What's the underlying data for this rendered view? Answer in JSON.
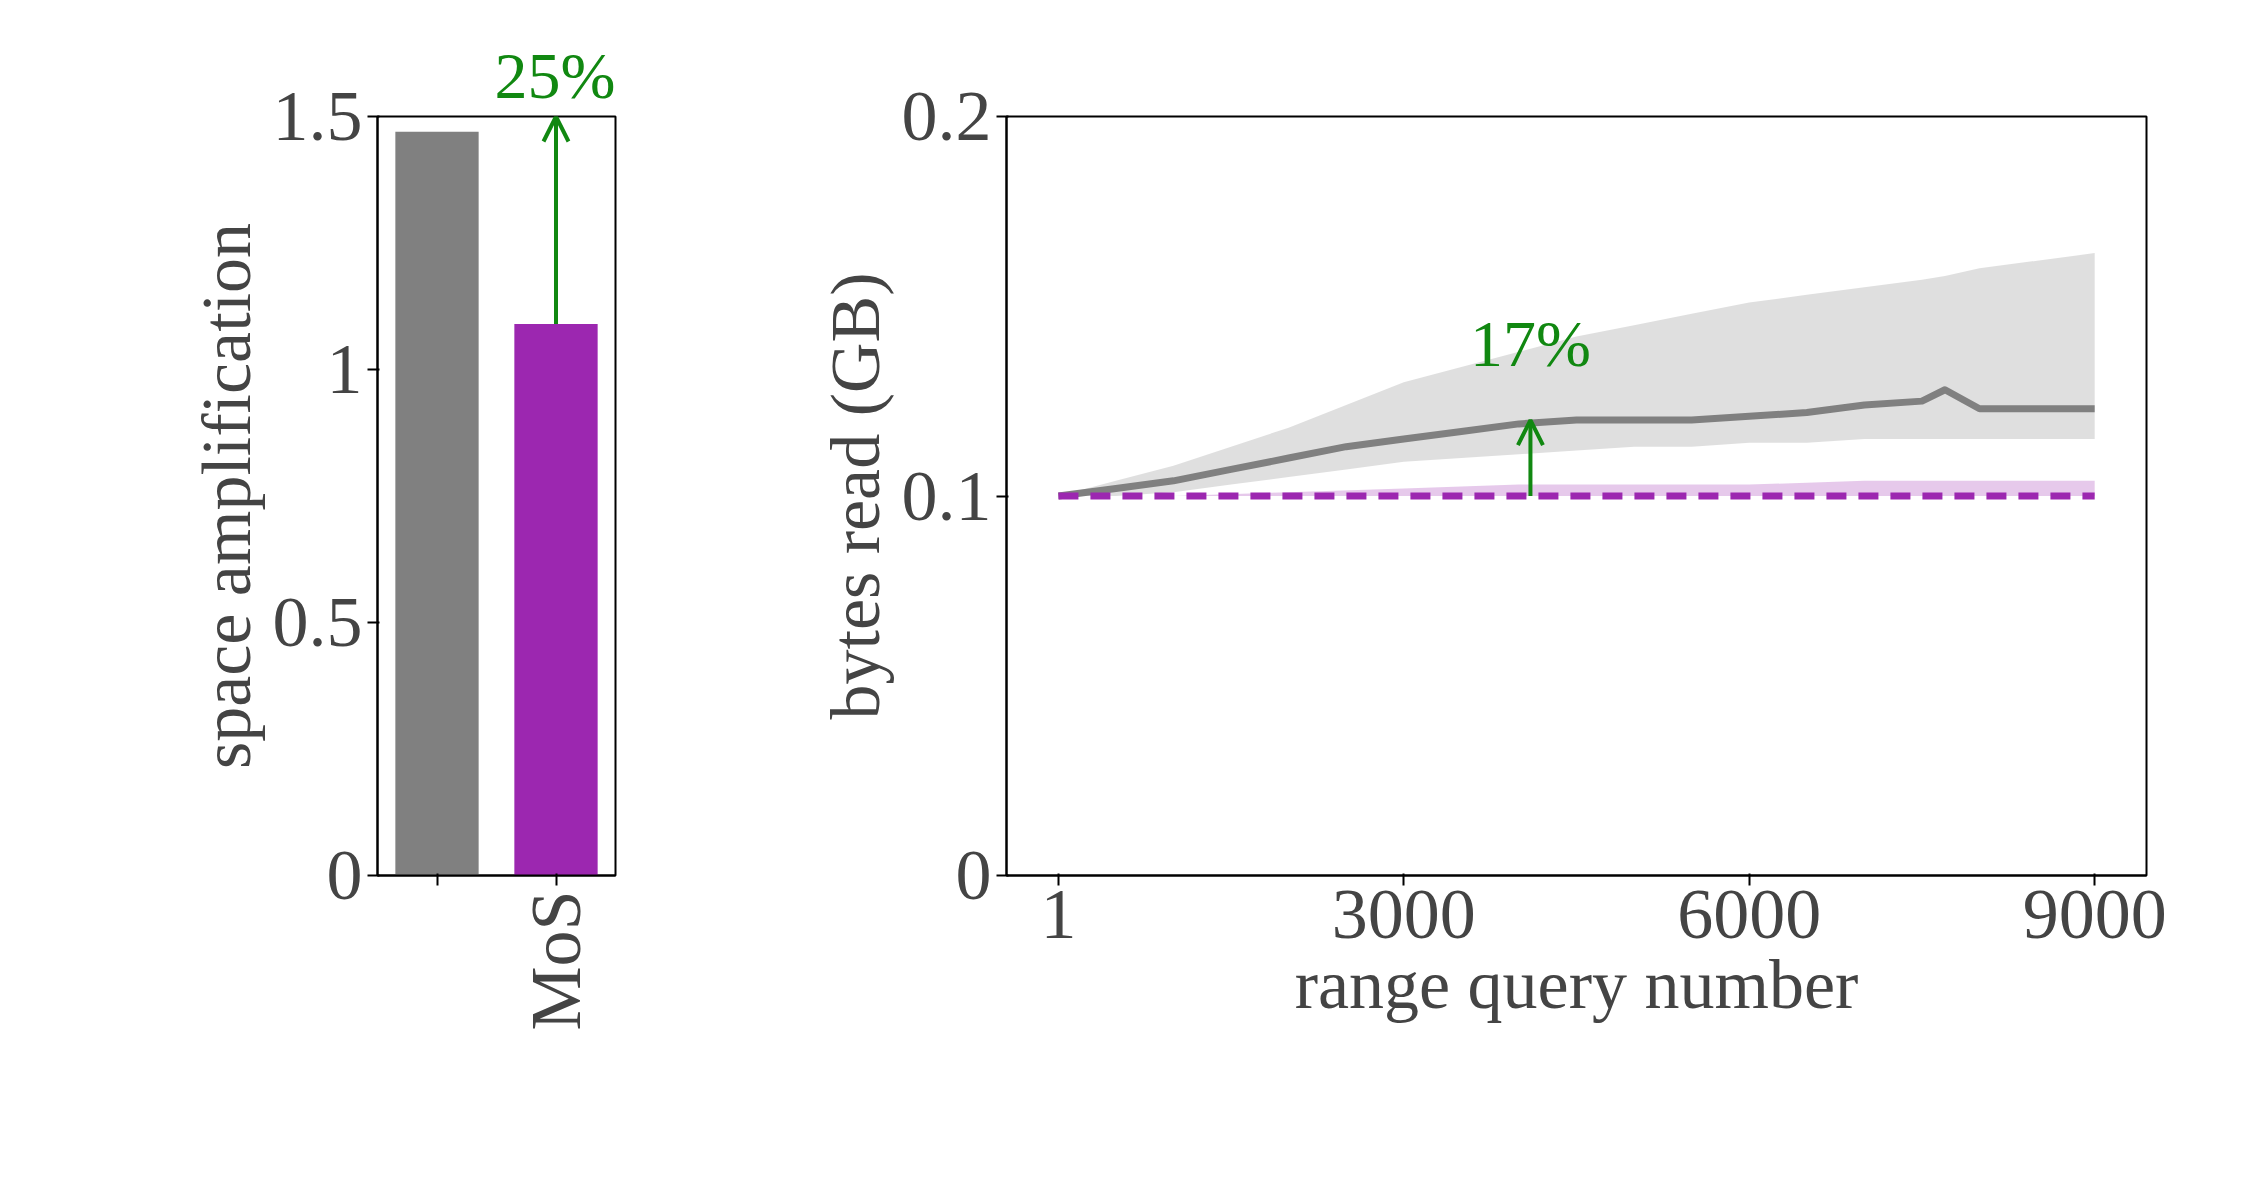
{
  "chart_data": [
    {
      "type": "bar",
      "ylabel": "space amplification",
      "categories": [
        null,
        "MoS"
      ],
      "values": [
        1.47,
        1.09
      ],
      "colors": [
        "#808080",
        "#9c27b0"
      ],
      "ylim": [
        0,
        1.5
      ],
      "yticks": [
        0,
        0.5,
        1,
        1.5
      ],
      "grid": false,
      "annotations": [
        "25%"
      ]
    },
    {
      "type": "line",
      "xlabel": "range query number",
      "ylabel": "bytes read (GB)",
      "xlim": [
        -450,
        9450
      ],
      "xticks": [
        1,
        3000,
        6000,
        9000
      ],
      "ylim": [
        0,
        0.2
      ],
      "yticks": [
        0,
        0.1,
        0.2
      ],
      "grid": false,
      "series": [
        {
          "color": "#808080",
          "line_style": "solid",
          "x": [
            1,
            500,
            1000,
            1500,
            2000,
            2500,
            3000,
            3500,
            4000,
            4500,
            5000,
            5500,
            6000,
            6500,
            7000,
            7500,
            7700,
            8000,
            8500,
            9000
          ],
          "values": [
            0.1,
            0.102,
            0.104,
            0.107,
            0.11,
            0.113,
            0.115,
            0.117,
            0.119,
            0.12,
            0.12,
            0.12,
            0.121,
            0.122,
            0.124,
            0.125,
            0.128,
            0.123,
            0.123,
            0.123
          ],
          "lower": [
            0.1,
            0.1,
            0.101,
            0.103,
            0.105,
            0.107,
            0.109,
            0.11,
            0.111,
            0.112,
            0.113,
            0.113,
            0.114,
            0.114,
            0.115,
            0.115,
            0.115,
            0.115,
            0.115,
            0.115
          ],
          "upper": [
            0.1,
            0.104,
            0.108,
            0.113,
            0.118,
            0.124,
            0.13,
            0.134,
            0.138,
            0.142,
            0.145,
            0.148,
            0.151,
            0.153,
            0.155,
            0.157,
            0.158,
            0.16,
            0.162,
            0.164
          ]
        },
        {
          "color": "#9c27b0",
          "line_style": "dashed",
          "x": [
            1,
            1000,
            2000,
            3000,
            4000,
            5000,
            6000,
            7000,
            8000,
            9000
          ],
          "values": [
            0.1,
            0.1,
            0.1,
            0.1,
            0.1,
            0.1,
            0.1,
            0.1,
            0.1,
            0.1
          ],
          "lower": [
            0.1,
            0.1,
            0.1,
            0.1,
            0.1,
            0.1,
            0.1,
            0.1,
            0.1,
            0.1
          ],
          "upper": [
            0.1,
            0.1,
            0.101,
            0.102,
            0.103,
            0.103,
            0.103,
            0.104,
            0.104,
            0.104
          ]
        }
      ],
      "annotations": [
        {
          "text": "17%",
          "x": 4100,
          "y": 0.12
        }
      ]
    }
  ]
}
